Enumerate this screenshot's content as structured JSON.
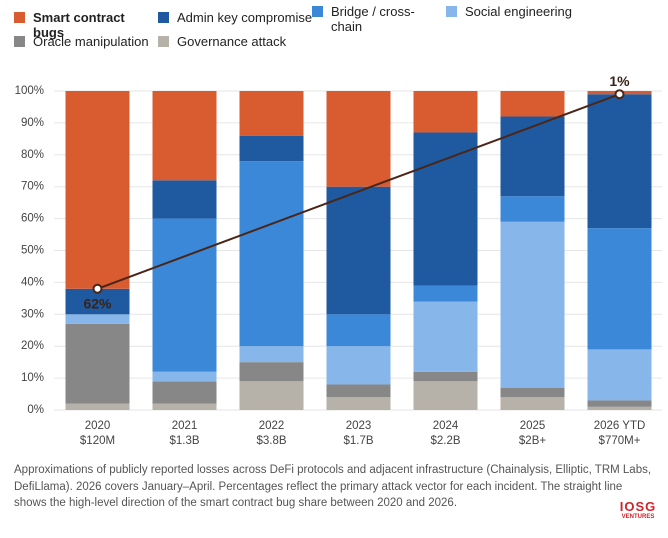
{
  "chart_data": {
    "type": "stacked_bar",
    "categories": [
      "2020",
      "2021",
      "2022",
      "2023",
      "2024",
      "2025",
      "2026 YTD"
    ],
    "category_sublabels": [
      "$120M",
      "$1.3B",
      "$3.8B",
      "$1.7B",
      "$2.2B",
      "$2B+",
      "$770M+"
    ],
    "series": [
      {
        "name": "Governance attack",
        "color": "#b7b2a9",
        "values": [
          2,
          2,
          9,
          4,
          9,
          4,
          1
        ]
      },
      {
        "name": "Oracle manipulation",
        "color": "#878787",
        "values": [
          25,
          7,
          6,
          4,
          3,
          3,
          2
        ]
      },
      {
        "name": "Social engineering",
        "color": "#86b6ea",
        "values": [
          3,
          3,
          5,
          12,
          22,
          52,
          16
        ]
      },
      {
        "name": "Bridge / cross-chain",
        "color": "#3b88d9",
        "values": [
          0,
          48,
          58,
          10,
          5,
          8,
          38
        ]
      },
      {
        "name": "Admin key compromise",
        "color": "#1f5aa0",
        "values": [
          8,
          12,
          8,
          40,
          48,
          25,
          42
        ]
      },
      {
        "name": "Smart contract bugs",
        "color": "#d95b30",
        "values": [
          62,
          28,
          14,
          30,
          13,
          8,
          1
        ]
      }
    ],
    "trend": {
      "color": "#4a2618",
      "categories": [
        "2020",
        "2026 YTD"
      ],
      "values": [
        62,
        1
      ],
      "value_labels": [
        "62%",
        "1%"
      ]
    },
    "ylim": [
      0,
      100
    ],
    "yticks": [
      {
        "value": 0,
        "label": "0%"
      },
      {
        "value": 10,
        "label": "10%"
      },
      {
        "value": 20,
        "label": "20%"
      },
      {
        "value": 30,
        "label": "30%"
      },
      {
        "value": 40,
        "label": "40%"
      },
      {
        "value": 50,
        "label": "50%"
      },
      {
        "value": 60,
        "label": "60%"
      },
      {
        "value": 70,
        "label": "70%"
      },
      {
        "value": 80,
        "label": "80%"
      },
      {
        "value": 90,
        "label": "90%"
      },
      {
        "value": 100,
        "label": "100%"
      }
    ],
    "grid": true,
    "caption": "Approximations of publicly reported losses across DeFi protocols and adjacent infrastructure (Chainalysis, Elliptic, TRM Labs, DefiLlama). 2026 covers January–April. Percentages reflect the primary attack vector for each incident. The straight line shows the high-level direction of the smart contract bug share between 2020 and 2026.",
    "logo": "IOSG",
    "logo_sub": "VENTURES"
  }
}
